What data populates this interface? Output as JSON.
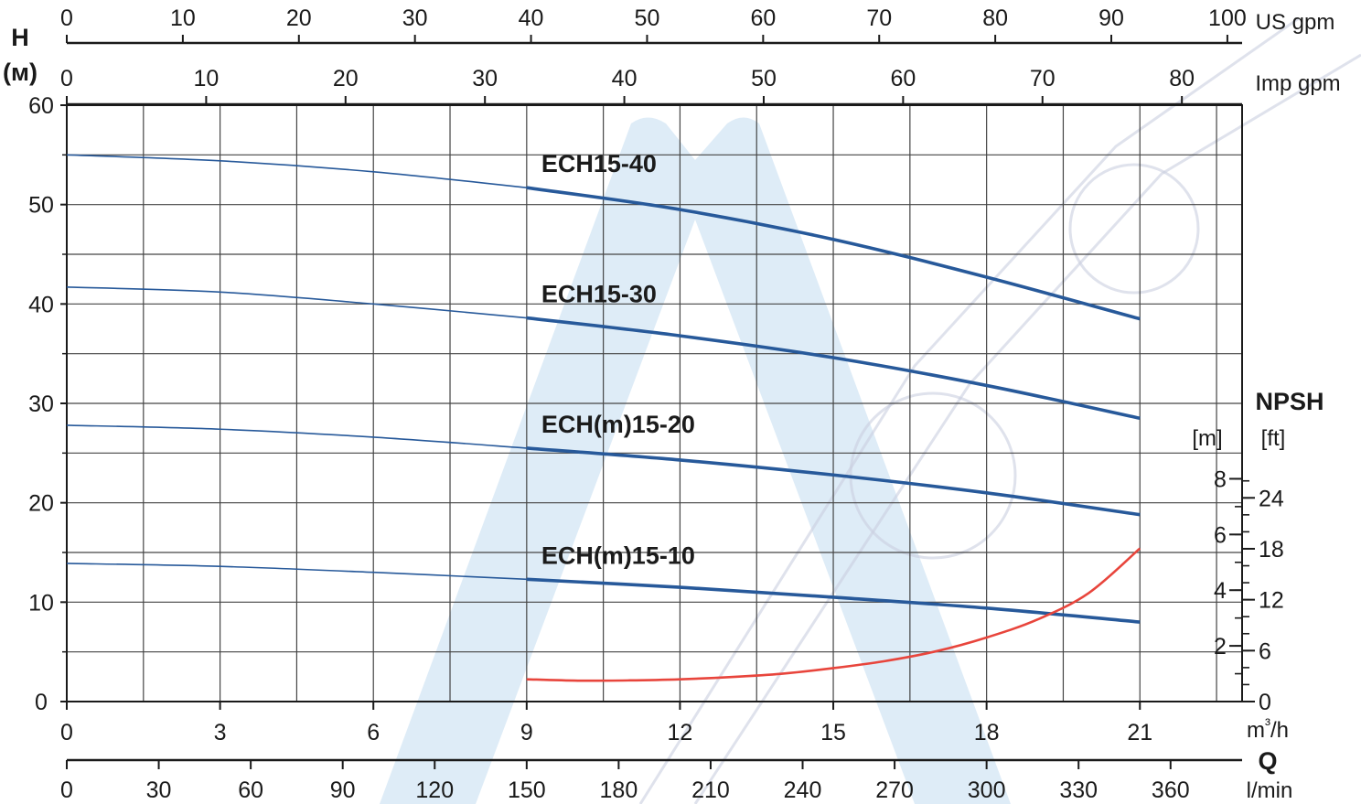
{
  "chart_data": {
    "type": "line",
    "axes": {
      "flow_m3h": {
        "label": "m³/h",
        "ticks": [
          "0",
          "3",
          "6",
          "9",
          "12",
          "15",
          "18",
          "21"
        ],
        "range": [
          0,
          23
        ]
      },
      "flow_lmin": {
        "label": "l/min",
        "ticks": [
          "0",
          "30",
          "60",
          "90",
          "120",
          "150",
          "180",
          "210",
          "240",
          "270",
          "300",
          "330",
          "360"
        ]
      },
      "flow_usgpm": {
        "label": "US gpm",
        "ticks": [
          "0",
          "10",
          "20",
          "30",
          "40",
          "50",
          "60",
          "70",
          "80",
          "90",
          "100"
        ]
      },
      "flow_impgpm": {
        "label": "Imp gpm",
        "ticks": [
          "0",
          "10",
          "20",
          "30",
          "40",
          "50",
          "60",
          "70",
          "80"
        ]
      },
      "flow_symbol": "Q",
      "head": {
        "symbol": "H",
        "unit": "(м)",
        "ticks": [
          "0",
          "10",
          "20",
          "30",
          "40",
          "50",
          "60"
        ],
        "range": [
          0,
          60
        ]
      },
      "npsh": {
        "title": "NPSH",
        "unit_m": "[m]",
        "unit_ft": "[ft]",
        "ticks_m": [
          "2",
          "4",
          "6",
          "8"
        ],
        "ticks_ft": [
          "0",
          "6",
          "12",
          "18",
          "24"
        ]
      }
    },
    "grid": true,
    "series": [
      {
        "name": "ECH15-40",
        "color": "#27599a",
        "x": [
          0,
          3,
          6,
          9,
          12,
          15,
          18,
          21
        ],
        "y": [
          55.0,
          54.4,
          53.3,
          51.7,
          49.5,
          46.5,
          42.7,
          38.5
        ]
      },
      {
        "name": "ECH15-30",
        "color": "#27599a",
        "x": [
          0,
          3,
          6,
          9,
          12,
          15,
          18,
          21
        ],
        "y": [
          41.7,
          41.2,
          40.0,
          38.6,
          36.8,
          34.6,
          31.8,
          28.5
        ]
      },
      {
        "name": "ECH(m)15-20",
        "color": "#27599a",
        "x": [
          0,
          3,
          6,
          9,
          12,
          15,
          18,
          21
        ],
        "y": [
          27.8,
          27.4,
          26.6,
          25.5,
          24.3,
          22.8,
          21.0,
          18.8
        ]
      },
      {
        "name": "ECH(m)15-10",
        "color": "#27599a",
        "x": [
          0,
          3,
          6,
          9,
          12,
          15,
          18,
          21
        ],
        "y": [
          13.9,
          13.6,
          13.0,
          12.3,
          11.5,
          10.5,
          9.4,
          8.0
        ]
      },
      {
        "name": "",
        "axis": "npsh_m",
        "color": "#e8453c",
        "x": [
          9,
          10,
          11,
          12,
          13,
          14,
          15,
          16,
          17,
          18,
          19,
          20,
          21
        ],
        "y": [
          0.8,
          0.75,
          0.76,
          0.8,
          0.88,
          1.0,
          1.2,
          1.45,
          1.8,
          2.3,
          2.95,
          3.9,
          5.5
        ]
      }
    ]
  }
}
